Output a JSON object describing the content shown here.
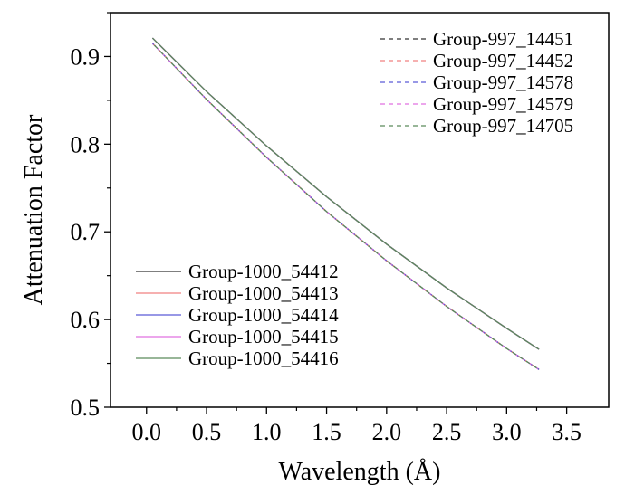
{
  "chart_data": {
    "type": "line",
    "title": "",
    "xlabel": "Wavelength (Å)",
    "ylabel": "Attenuation Factor",
    "xlim": [
      -0.3,
      3.85
    ],
    "ylim": [
      0.5,
      0.95
    ],
    "xticks": [
      "0.0",
      "0.5",
      "1.0",
      "1.5",
      "2.0",
      "2.5",
      "3.0",
      "3.5"
    ],
    "yticks": [
      "0.5",
      "0.6",
      "0.7",
      "0.8",
      "0.9"
    ],
    "grid": false,
    "x": [
      0.05,
      0.5,
      1.0,
      1.5,
      2.0,
      2.5,
      3.0,
      3.27
    ],
    "series": [
      {
        "name": "Group-997_14451",
        "style": "dashed",
        "color": "#333333",
        "values": [
          0.915,
          0.851,
          0.785,
          0.723,
          0.667,
          0.615,
          0.567,
          0.543
        ]
      },
      {
        "name": "Group-997_14452",
        "style": "dashed",
        "color": "#f08080",
        "values": [
          0.915,
          0.851,
          0.785,
          0.723,
          0.667,
          0.615,
          0.567,
          0.543
        ]
      },
      {
        "name": "Group-997_14578",
        "style": "dashed",
        "color": "#5b5bd6",
        "values": [
          0.915,
          0.851,
          0.785,
          0.723,
          0.667,
          0.615,
          0.567,
          0.543
        ]
      },
      {
        "name": "Group-997_14579",
        "style": "dashed",
        "color": "#e070e0",
        "values": [
          0.915,
          0.851,
          0.785,
          0.723,
          0.667,
          0.615,
          0.567,
          0.543
        ]
      },
      {
        "name": "Group-997_14705",
        "style": "dashed",
        "color": "#5a8a5a",
        "values": [
          0.915,
          0.851,
          0.785,
          0.723,
          0.667,
          0.615,
          0.567,
          0.543
        ]
      },
      {
        "name": "Group-1000_54412",
        "style": "solid",
        "color": "#333333",
        "values": [
          0.921,
          0.86,
          0.798,
          0.74,
          0.686,
          0.636,
          0.59,
          0.566
        ]
      },
      {
        "name": "Group-1000_54413",
        "style": "solid",
        "color": "#f08080",
        "values": [
          0.921,
          0.86,
          0.798,
          0.74,
          0.686,
          0.636,
          0.59,
          0.566
        ]
      },
      {
        "name": "Group-1000_54414",
        "style": "solid",
        "color": "#5b5bd6",
        "values": [
          0.921,
          0.86,
          0.798,
          0.74,
          0.686,
          0.636,
          0.59,
          0.566
        ]
      },
      {
        "name": "Group-1000_54415",
        "style": "solid",
        "color": "#e070e0",
        "values": [
          0.921,
          0.86,
          0.798,
          0.74,
          0.686,
          0.636,
          0.59,
          0.566
        ]
      },
      {
        "name": "Group-1000_54416",
        "style": "solid",
        "color": "#5a8a5a",
        "values": [
          0.921,
          0.86,
          0.798,
          0.74,
          0.686,
          0.636,
          0.59,
          0.566
        ]
      }
    ],
    "legends": [
      {
        "placement": "top-right",
        "entries": [
          0,
          1,
          2,
          3,
          4
        ]
      },
      {
        "placement": "bottom-left",
        "entries": [
          5,
          6,
          7,
          8,
          9
        ]
      }
    ]
  }
}
